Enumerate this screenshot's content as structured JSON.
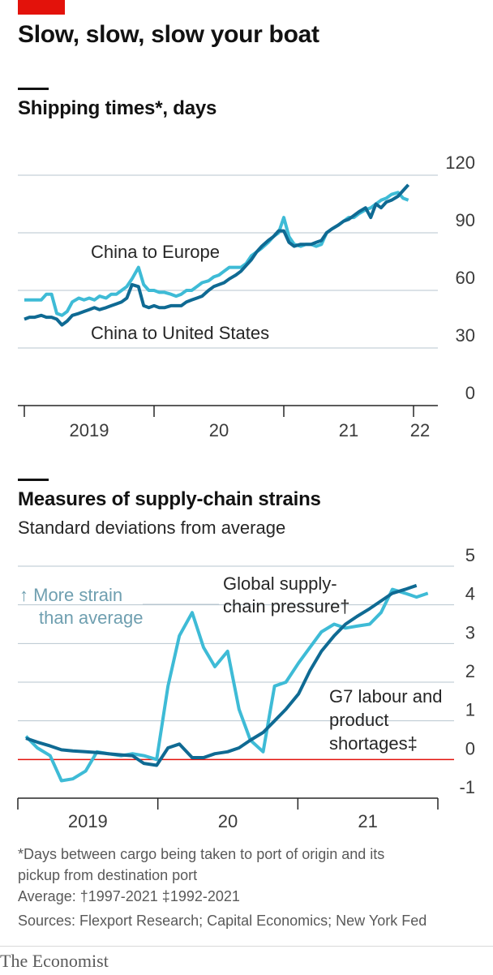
{
  "header": {
    "title": "Slow, slow, slow your boat"
  },
  "chart_data": [
    {
      "type": "line",
      "title": "Shipping times*, days",
      "ylim": [
        0,
        120
      ],
      "yticks": [
        0,
        30,
        60,
        90,
        120
      ],
      "xlim": [
        2018.95,
        2022.05
      ],
      "xtick_labels": [
        "2019",
        "20",
        "21",
        "22"
      ],
      "series": [
        {
          "name": "China to Europe",
          "color": "#3ebbd6",
          "x": [
            2019.0,
            2019.04,
            2019.08,
            2019.13,
            2019.17,
            2019.21,
            2019.25,
            2019.29,
            2019.33,
            2019.37,
            2019.42,
            2019.46,
            2019.5,
            2019.54,
            2019.58,
            2019.63,
            2019.67,
            2019.71,
            2019.75,
            2019.79,
            2019.83,
            2019.88,
            2019.92,
            2019.96,
            2020.0,
            2020.04,
            2020.08,
            2020.13,
            2020.17,
            2020.21,
            2020.25,
            2020.29,
            2020.33,
            2020.37,
            2020.42,
            2020.46,
            2020.5,
            2020.54,
            2020.58,
            2020.63,
            2020.67,
            2020.71,
            2020.75,
            2020.79,
            2020.83,
            2020.88,
            2020.92,
            2020.96,
            2021.0,
            2021.04,
            2021.08,
            2021.13,
            2021.17,
            2021.21,
            2021.25,
            2021.29,
            2021.33,
            2021.37,
            2021.42,
            2021.46,
            2021.5,
            2021.54,
            2021.58,
            2021.63,
            2021.67,
            2021.71,
            2021.75,
            2021.79,
            2021.83,
            2021.88,
            2021.92,
            2021.96
          ],
          "values": [
            55,
            55,
            55,
            55,
            58,
            58,
            48,
            47,
            49,
            54,
            56,
            55,
            56,
            55,
            57,
            56,
            58,
            58,
            60,
            62,
            66,
            72,
            63,
            60,
            60,
            59,
            59,
            58,
            57,
            58,
            60,
            60,
            62,
            64,
            65,
            67,
            68,
            70,
            72,
            72,
            72,
            74,
            78,
            80,
            82,
            85,
            88,
            90,
            98,
            88,
            84,
            83,
            84,
            84,
            83,
            84,
            90,
            92,
            94,
            96,
            98,
            98,
            100,
            102,
            103,
            105,
            107,
            108,
            110,
            111,
            108,
            107
          ]
        },
        {
          "name": "China to United States",
          "color": "#0f6a93",
          "x": [
            2019.0,
            2019.04,
            2019.08,
            2019.13,
            2019.17,
            2019.21,
            2019.25,
            2019.29,
            2019.33,
            2019.37,
            2019.42,
            2019.46,
            2019.5,
            2019.54,
            2019.58,
            2019.63,
            2019.67,
            2019.71,
            2019.75,
            2019.79,
            2019.83,
            2019.88,
            2019.92,
            2019.96,
            2020.0,
            2020.04,
            2020.08,
            2020.13,
            2020.17,
            2020.21,
            2020.25,
            2020.29,
            2020.33,
            2020.37,
            2020.42,
            2020.46,
            2020.5,
            2020.54,
            2020.58,
            2020.63,
            2020.67,
            2020.71,
            2020.75,
            2020.79,
            2020.83,
            2020.88,
            2020.92,
            2020.96,
            2021.0,
            2021.04,
            2021.08,
            2021.13,
            2021.17,
            2021.21,
            2021.25,
            2021.29,
            2021.33,
            2021.37,
            2021.42,
            2021.46,
            2021.5,
            2021.54,
            2021.58,
            2021.63,
            2021.67,
            2021.71,
            2021.75,
            2021.79,
            2021.83,
            2021.88,
            2021.92,
            2021.96
          ],
          "values": [
            45,
            46,
            46,
            47,
            46,
            46,
            45,
            42,
            44,
            47,
            48,
            49,
            50,
            51,
            50,
            51,
            52,
            53,
            54,
            56,
            63,
            62,
            52,
            51,
            52,
            51,
            51,
            52,
            52,
            52,
            54,
            55,
            56,
            57,
            60,
            62,
            63,
            64,
            66,
            68,
            70,
            73,
            76,
            80,
            83,
            86,
            88,
            91,
            91,
            85,
            83,
            84,
            84,
            84,
            85,
            86,
            90,
            92,
            94,
            96,
            97,
            99,
            101,
            103,
            98,
            105,
            103,
            106,
            107,
            109,
            112,
            115
          ]
        }
      ],
      "annotations": [
        "China to Europe",
        "China to United States"
      ]
    },
    {
      "type": "line",
      "title": "Measures of supply-chain strains",
      "subtitle": "Standard deviations from average",
      "ylim": [
        -1,
        5
      ],
      "yticks": [
        -1,
        0,
        1,
        2,
        3,
        4,
        5
      ],
      "xlim": [
        2019.0,
        2021.9
      ],
      "xtick_labels": [
        "2019",
        "20",
        "21"
      ],
      "zero_line_color": "#e3120b",
      "strain_note": [
        "↑ More strain",
        "than average"
      ],
      "series": [
        {
          "name": "Global supply-chain pressure†",
          "label_lines": [
            "Global supply-",
            "chain pressure†"
          ],
          "color": "#3ebbd6",
          "x": [
            2019.0,
            2019.08,
            2019.17,
            2019.25,
            2019.33,
            2019.42,
            2019.5,
            2019.58,
            2019.67,
            2019.75,
            2019.83,
            2019.92,
            2020.0,
            2020.08,
            2020.17,
            2020.25,
            2020.33,
            2020.42,
            2020.5,
            2020.58,
            2020.67,
            2020.75,
            2020.83,
            2020.92,
            2021.0,
            2021.08,
            2021.17,
            2021.25,
            2021.33,
            2021.42,
            2021.5,
            2021.58,
            2021.67,
            2021.75,
            2021.83
          ],
          "values": [
            0.6,
            0.3,
            0.1,
            -0.55,
            -0.5,
            -0.3,
            0.2,
            0.15,
            0.1,
            0.15,
            0.1,
            0.0,
            1.9,
            3.2,
            3.8,
            2.9,
            2.4,
            2.8,
            1.3,
            0.5,
            0.2,
            1.9,
            2.0,
            2.5,
            2.9,
            3.3,
            3.5,
            3.4,
            3.45,
            3.5,
            3.8,
            4.4,
            4.3,
            4.2,
            4.3
          ]
        },
        {
          "name": "G7 labour and product shortages‡",
          "label_lines": [
            "G7 labour and",
            "product",
            "shortages‡"
          ],
          "color": "#0f6a93",
          "x": [
            2019.0,
            2019.08,
            2019.17,
            2019.25,
            2019.33,
            2019.42,
            2019.5,
            2019.58,
            2019.67,
            2019.75,
            2019.83,
            2019.92,
            2020.0,
            2020.08,
            2020.17,
            2020.25,
            2020.33,
            2020.42,
            2020.5,
            2020.58,
            2020.67,
            2020.75,
            2020.83,
            2020.92,
            2021.0,
            2021.08,
            2021.17,
            2021.25,
            2021.33,
            2021.42,
            2021.5,
            2021.58,
            2021.67,
            2021.75
          ],
          "values": [
            0.55,
            0.45,
            0.35,
            0.25,
            0.22,
            0.2,
            0.18,
            0.15,
            0.12,
            0.1,
            -0.1,
            -0.15,
            0.3,
            0.4,
            0.05,
            0.05,
            0.15,
            0.2,
            0.3,
            0.5,
            0.7,
            1.0,
            1.3,
            1.7,
            2.3,
            2.8,
            3.2,
            3.5,
            3.7,
            3.9,
            4.1,
            4.3,
            4.4,
            4.5
          ]
        }
      ]
    }
  ],
  "footnotes": {
    "line1": "*Days between cargo being taken to port of origin and its",
    "line2": "pickup from destination port",
    "line3": "Average: †1997-2021   ‡1992-2021",
    "sources": "Sources: Flexport Research; Capital Economics; New York Fed"
  },
  "brand": {
    "name": "The Economist",
    "accent": "#e3120b"
  }
}
